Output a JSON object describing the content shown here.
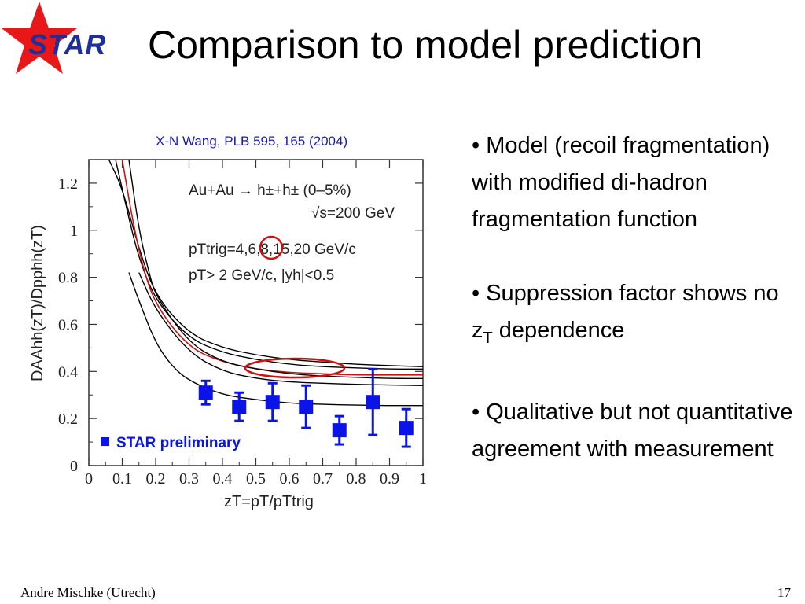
{
  "header": {
    "logo_text": "STAR",
    "title": "Comparison to model prediction"
  },
  "citation": "X-N Wang, PLB 595, 165 (2004)",
  "annotations": {
    "line1": "Au+Au → h±+h± (0–5%)",
    "line2": "√s=200 GeV",
    "line3": "pTtrig=4,6,8,15,20 GeV/c",
    "line4": "pT> 2 GeV/c, |yh|<0.5",
    "legend_label": "STAR preliminary"
  },
  "chart_data": {
    "type": "scatter",
    "xlabel": "zT=pT/pTtrig",
    "ylabel": "DAAhh(zT)/Dpphh(zT)",
    "xlim": [
      0,
      1
    ],
    "ylim": [
      0,
      1.3
    ],
    "x_ticks": [
      "0",
      "0.1",
      "0.2",
      "0.3",
      "0.4",
      "0.5",
      "0.6",
      "0.7",
      "0.8",
      "0.9",
      "1"
    ],
    "y_ticks": [
      "0",
      "0.2",
      "0.4",
      "0.6",
      "0.8",
      "1",
      "1.2"
    ],
    "colors": {
      "model": "#000000",
      "highlight": "#d01010",
      "data": "#0a14e6"
    },
    "model_curves": [
      {
        "x": [
          0.06,
          0.1,
          0.15,
          0.2,
          0.3,
          0.4,
          0.5,
          0.6,
          0.7,
          0.8,
          0.9,
          1.0
        ],
        "y": [
          1.3,
          1.18,
          0.92,
          0.72,
          0.56,
          0.5,
          0.47,
          0.45,
          0.44,
          0.43,
          0.425,
          0.42
        ],
        "highlight": false
      },
      {
        "x": [
          0.08,
          0.12,
          0.15,
          0.2,
          0.3,
          0.4,
          0.5,
          0.6,
          0.7,
          0.8,
          0.9,
          1.0
        ],
        "y": [
          1.3,
          1.05,
          0.88,
          0.7,
          0.54,
          0.48,
          0.45,
          0.43,
          0.42,
          0.415,
          0.41,
          0.41
        ],
        "highlight": false
      },
      {
        "x": [
          0.1,
          0.13,
          0.16,
          0.2,
          0.3,
          0.4,
          0.5,
          0.6,
          0.7,
          0.8,
          0.9,
          1.0
        ],
        "y": [
          1.3,
          1.05,
          0.85,
          0.68,
          0.5,
          0.44,
          0.41,
          0.395,
          0.39,
          0.385,
          0.385,
          0.385
        ],
        "highlight": true
      },
      {
        "x": [
          0.12,
          0.15,
          0.18,
          0.2,
          0.3,
          0.4,
          0.5,
          0.6,
          0.7,
          0.8,
          0.9,
          1.0
        ],
        "y": [
          1.3,
          1.0,
          0.82,
          0.72,
          0.52,
          0.44,
          0.41,
          0.39,
          0.38,
          0.375,
          0.37,
          0.37
        ],
        "highlight": false
      },
      {
        "x": [
          0.15,
          0.2,
          0.3,
          0.4,
          0.5,
          0.6,
          0.7,
          0.8,
          0.9,
          1.0
        ],
        "y": [
          0.82,
          0.66,
          0.48,
          0.4,
          0.37,
          0.355,
          0.35,
          0.345,
          0.342,
          0.34
        ],
        "highlight": false
      },
      {
        "x": [
          0.12,
          0.15,
          0.2,
          0.25,
          0.3,
          0.4,
          0.5,
          0.6,
          0.7,
          0.8,
          0.9,
          1.0
        ],
        "y": [
          0.82,
          0.7,
          0.52,
          0.42,
          0.36,
          0.3,
          0.28,
          0.265,
          0.26,
          0.257,
          0.255,
          0.255
        ],
        "highlight": false
      }
    ],
    "series": [
      {
        "name": "STAR preliminary",
        "points": [
          {
            "x": 0.35,
            "y": 0.31,
            "err": 0.05
          },
          {
            "x": 0.45,
            "y": 0.25,
            "err": 0.06
          },
          {
            "x": 0.55,
            "y": 0.27,
            "err": 0.08
          },
          {
            "x": 0.65,
            "y": 0.25,
            "err": 0.09
          },
          {
            "x": 0.75,
            "y": 0.15,
            "err": 0.06
          },
          {
            "x": 0.85,
            "y": 0.27,
            "err": 0.14
          },
          {
            "x": 0.95,
            "y": 0.16,
            "err": 0.08
          }
        ]
      }
    ]
  },
  "bullets": [
    {
      "text": "• Model (recoil fragmentation) with modified di-hadron fragmentation function"
    },
    {
      "pre": "• Suppression factor shows no z",
      "sub": "T",
      "post": " dependence"
    },
    {
      "text": "• Qualitative but not quantitative agreement with measurement"
    }
  ],
  "footer": {
    "author": "Andre Mischke (Utrecht)",
    "page": "17"
  }
}
